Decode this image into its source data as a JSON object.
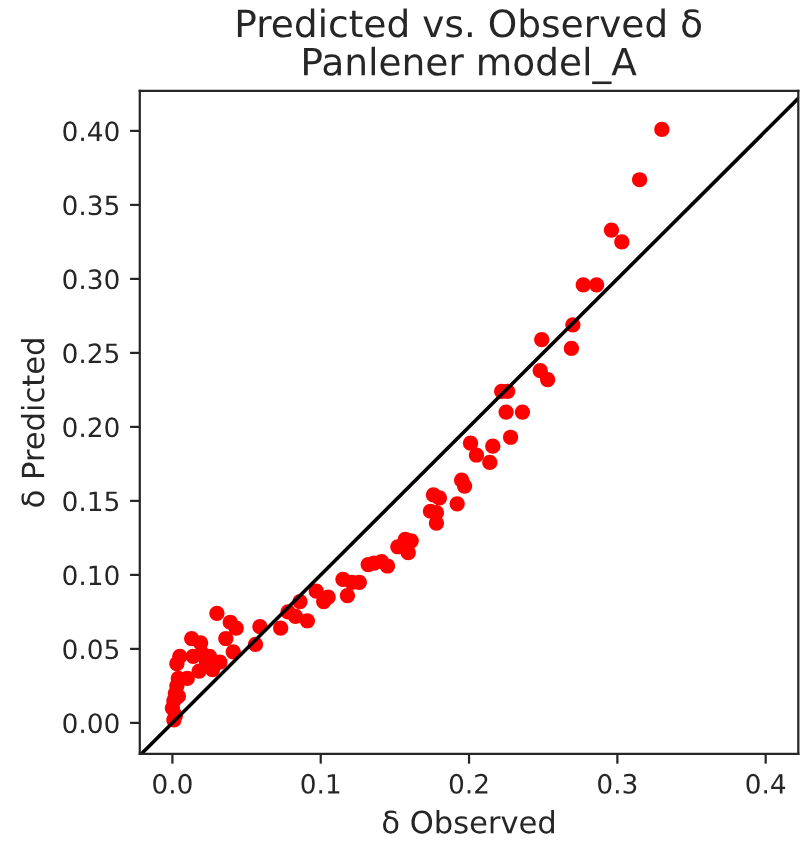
{
  "chart_data": {
    "type": "scatter",
    "title": "Predicted vs. Observed δ",
    "subtitle": "Panlener model_A",
    "xlabel": "δ Observed",
    "ylabel": "δ Predicted",
    "xlim": [
      -0.022,
      0.422
    ],
    "ylim": [
      -0.021,
      0.427
    ],
    "xticks": [
      {
        "value": 0,
        "label": "0.0"
      },
      {
        "value": 0.1,
        "label": "0.1"
      },
      {
        "value": 0.2,
        "label": "0.2"
      },
      {
        "value": 0.3,
        "label": "0.3"
      },
      {
        "value": 0.4,
        "label": "0.4"
      }
    ],
    "yticks": [
      {
        "value": 0,
        "label": "0.00"
      },
      {
        "value": 0.05,
        "label": "0.05"
      },
      {
        "value": 0.1,
        "label": "0.10"
      },
      {
        "value": 0.15,
        "label": "0.15"
      },
      {
        "value": 0.2,
        "label": "0.20"
      },
      {
        "value": 0.25,
        "label": "0.25"
      },
      {
        "value": 0.3,
        "label": "0.30"
      },
      {
        "value": 0.35,
        "label": "0.35"
      },
      {
        "value": 0.4,
        "label": "0.40"
      }
    ],
    "grid": false,
    "legend": false,
    "series": [
      {
        "marker": "circle",
        "color": "#ff0000",
        "x": [
          0.33,
          0.315,
          0.296,
          0.303,
          0.277,
          0.286,
          0.27,
          0.249,
          0.269,
          0.248,
          0.253,
          0.222,
          0.226,
          0.225,
          0.236,
          0.228,
          0.201,
          0.216,
          0.205,
          0.214,
          0.195,
          0.197,
          0.192,
          0.176,
          0.18,
          0.174,
          0.178,
          0.178,
          0.157,
          0.161,
          0.152,
          0.159,
          0.141,
          0.132,
          0.145,
          0.136,
          0.115,
          0.121,
          0.126,
          0.118,
          0.097,
          0.102,
          0.105,
          0.086,
          0.078,
          0.083,
          0.091,
          0.073,
          0.059,
          0.056,
          0.043,
          0.039,
          0.03,
          0.036,
          0.041,
          0.013,
          0.019,
          0.023,
          0.032,
          0.0,
          0.001,
          0.002,
          0.003,
          0.004,
          0.018,
          0.002,
          0.001,
          0.004,
          0.01,
          0.014,
          0.02,
          0.025,
          0.027,
          0.003,
          0.005
        ],
        "values": [
          0.401,
          0.367,
          0.333,
          0.325,
          0.296,
          0.296,
          0.269,
          0.259,
          0.253,
          0.238,
          0.232,
          0.224,
          0.224,
          0.21,
          0.21,
          0.193,
          0.189,
          0.187,
          0.181,
          0.176,
          0.164,
          0.16,
          0.148,
          0.154,
          0.152,
          0.143,
          0.142,
          0.135,
          0.124,
          0.123,
          0.119,
          0.115,
          0.109,
          0.107,
          0.106,
          0.108,
          0.097,
          0.095,
          0.095,
          0.086,
          0.089,
          0.082,
          0.085,
          0.082,
          0.075,
          0.072,
          0.069,
          0.064,
          0.065,
          0.053,
          0.064,
          0.068,
          0.074,
          0.057,
          0.048,
          0.057,
          0.054,
          0.041,
          0.041,
          0.01,
          0.015,
          0.02,
          0.025,
          0.03,
          0.035,
          0.005,
          0.002,
          0.018,
          0.03,
          0.045,
          0.047,
          0.045,
          0.036,
          0.04,
          0.045
        ]
      },
      {
        "type": "line",
        "color": "#000000",
        "x": [
          -0.021,
          0.422
        ],
        "values": [
          -0.021,
          0.422
        ]
      }
    ]
  }
}
